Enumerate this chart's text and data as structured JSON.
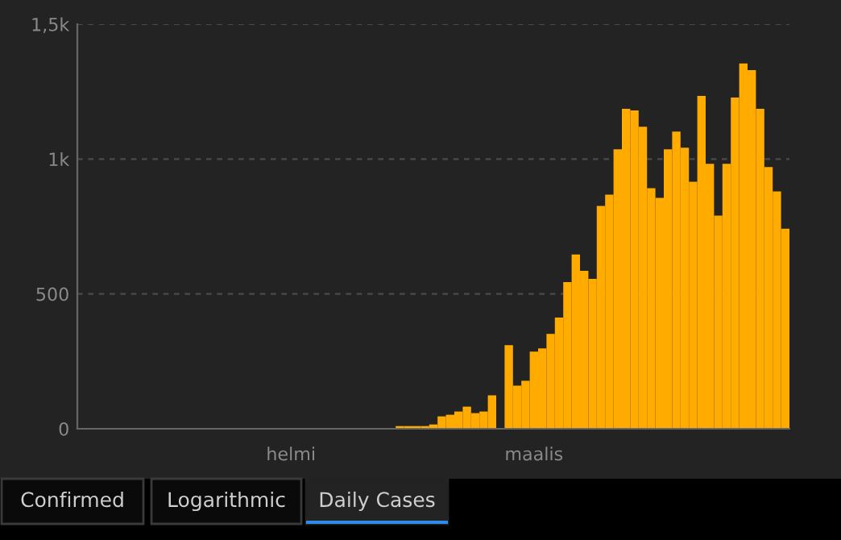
{
  "chart_data": {
    "type": "bar",
    "color": "#ffab00",
    "categories": [
      null,
      null,
      null,
      null,
      null,
      null,
      null,
      null,
      null,
      null,
      null,
      null,
      null,
      null,
      null,
      null,
      null,
      null,
      null,
      null,
      null,
      null,
      null,
      null,
      null,
      "helmi",
      null,
      null,
      null,
      null,
      null,
      null,
      null,
      null,
      null,
      null,
      null,
      null,
      null,
      null,
      null,
      null,
      null,
      null,
      null,
      null,
      null,
      null,
      null,
      null,
      null,
      null,
      null,
      null,
      "maalis",
      null,
      null,
      null,
      null,
      null,
      null,
      null,
      null,
      null,
      null,
      null,
      null,
      null,
      null,
      null,
      null,
      null,
      null,
      null,
      null,
      null,
      null,
      null,
      null,
      null,
      null,
      null,
      null,
      null,
      null
    ],
    "values": [
      0,
      0,
      0,
      0,
      0,
      0,
      0,
      0,
      0,
      0,
      0,
      0,
      0,
      0,
      0,
      0,
      0,
      0,
      0,
      0,
      0,
      0,
      0,
      0,
      0,
      0,
      0,
      0,
      0,
      0,
      0,
      0,
      0,
      0,
      0,
      0,
      0,
      null,
      10,
      10,
      10,
      10,
      16,
      46,
      52,
      64,
      82,
      58,
      64,
      124,
      null,
      310,
      160,
      178,
      286,
      298,
      352,
      412,
      544,
      646,
      586,
      556,
      826,
      868,
      1036,
      1186,
      1180,
      1120,
      892,
      856,
      1036,
      1102,
      1042,
      916,
      1234,
      982,
      790,
      982,
      1228,
      1354,
      1330,
      1186,
      970,
      880,
      742
    ],
    "ylim": [
      0,
      1500
    ],
    "yticks": [
      0,
      500,
      {
        "value": 1000,
        "label": "1k"
      },
      {
        "value": 1500,
        "label": "1,5k"
      }
    ],
    "grid": "y",
    "annotations": [
      "Confirmed",
      "Logarithmic",
      "Daily Cases"
    ]
  }
}
